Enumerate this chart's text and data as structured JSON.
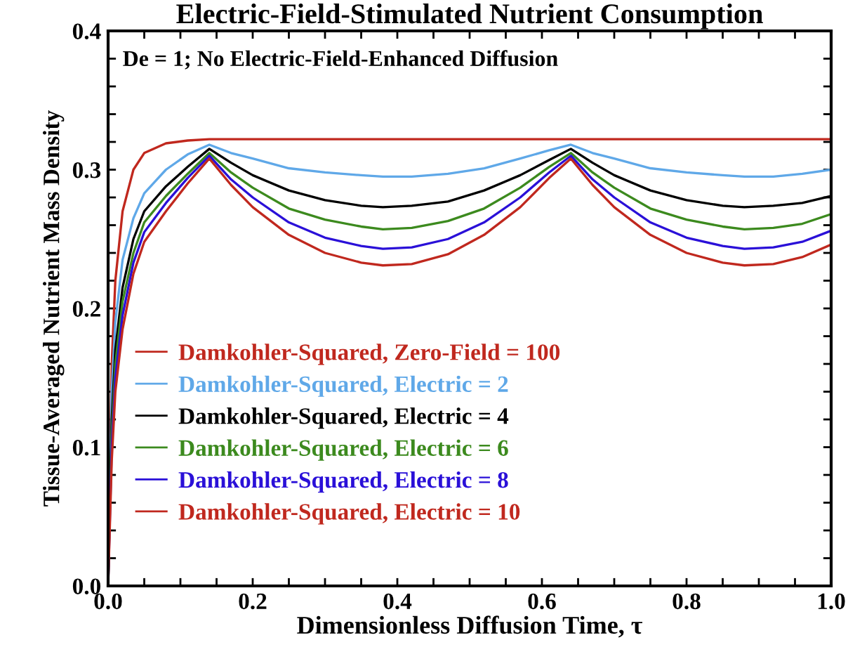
{
  "chart_data": {
    "type": "line",
    "title": "Electric-Field-Stimulated Nutrient Consumption",
    "xlabel": "Dimensionless Diffusion Time, τ",
    "ylabel": "Tissue-Averaged Nutrient Mass Density",
    "annotations": [
      "De = 1; No Electric-Field-Enhanced Diffusion"
    ],
    "xlim": [
      0,
      1
    ],
    "ylim": [
      0,
      0.4
    ],
    "xticks": [
      {
        "value": 0,
        "label": "0.0"
      },
      {
        "value": 0.05,
        "label": null
      },
      {
        "value": 0.1,
        "label": null
      },
      {
        "value": 0.15,
        "label": null
      },
      0.2,
      {
        "value": 0.25,
        "label": null
      },
      {
        "value": 0.3,
        "label": null
      },
      {
        "value": 0.35,
        "label": null
      },
      0.4,
      {
        "value": 0.45,
        "label": null
      },
      {
        "value": 0.5,
        "label": null
      },
      {
        "value": 0.55,
        "label": null
      },
      0.6,
      {
        "value": 0.65,
        "label": null
      },
      {
        "value": 0.7,
        "label": null
      },
      {
        "value": 0.75,
        "label": null
      },
      0.8,
      {
        "value": 0.85,
        "label": null
      },
      {
        "value": 0.9,
        "label": null
      },
      {
        "value": 0.95,
        "label": null
      },
      {
        "value": 1,
        "label": "1.0"
      }
    ],
    "yticks": [
      {
        "value": 0,
        "label": "0.0"
      },
      {
        "value": 0.02,
        "label": null
      },
      {
        "value": 0.04,
        "label": null
      },
      {
        "value": 0.06,
        "label": null
      },
      {
        "value": 0.08,
        "label": null
      },
      0.1,
      {
        "value": 0.12,
        "label": null
      },
      {
        "value": 0.14,
        "label": null
      },
      {
        "value": 0.16,
        "label": null
      },
      {
        "value": 0.18,
        "label": null
      },
      0.2,
      {
        "value": 0.22,
        "label": null
      },
      {
        "value": 0.24,
        "label": null
      },
      {
        "value": 0.26,
        "label": null
      },
      {
        "value": 0.28,
        "label": null
      },
      0.3,
      {
        "value": 0.32,
        "label": null
      },
      {
        "value": 0.34,
        "label": null
      },
      {
        "value": 0.36,
        "label": null
      },
      {
        "value": 0.38,
        "label": null
      },
      0.4
    ],
    "grid": false,
    "legend": "bottom left",
    "marker": "none",
    "line_style": "solid",
    "x": [
      0,
      0.005,
      0.01,
      0.02,
      0.035,
      0.05,
      0.08,
      0.11,
      0.14,
      0.17,
      0.2,
      0.25,
      0.3,
      0.35,
      0.38,
      0.42,
      0.47,
      0.52,
      0.57,
      0.61,
      0.64,
      0.67,
      0.7,
      0.75,
      0.8,
      0.85,
      0.88,
      0.92,
      0.96,
      1.0
    ],
    "series": [
      {
        "name": "Damkohler-Squared, Zero-Field = 100",
        "color": "#c0281e",
        "x": [
          0,
          0.005,
          0.01,
          0.02,
          0.035,
          0.05,
          0.08,
          0.11,
          0.14,
          1.0
        ],
        "values": [
          0,
          0.16,
          0.22,
          0.27,
          0.3,
          0.312,
          0.319,
          0.321,
          0.322,
          0.322
        ]
      },
      {
        "name": "Damkohler-Squared, Electric = 2",
        "color": "#5fa8e8",
        "values": [
          0,
          0.14,
          0.19,
          0.235,
          0.265,
          0.283,
          0.3,
          0.311,
          0.318,
          0.312,
          0.308,
          0.301,
          0.298,
          0.296,
          0.295,
          0.295,
          0.297,
          0.301,
          0.308,
          0.314,
          0.318,
          0.312,
          0.308,
          0.301,
          0.298,
          0.296,
          0.295,
          0.295,
          0.297,
          0.3
        ]
      },
      {
        "name": "Damkohler-Squared, Electric = 4",
        "color": "#000000",
        "values": [
          0,
          0.12,
          0.17,
          0.215,
          0.25,
          0.27,
          0.288,
          0.302,
          0.315,
          0.305,
          0.296,
          0.285,
          0.278,
          0.274,
          0.273,
          0.274,
          0.277,
          0.285,
          0.296,
          0.307,
          0.315,
          0.305,
          0.296,
          0.285,
          0.278,
          0.274,
          0.273,
          0.274,
          0.276,
          0.281
        ]
      },
      {
        "name": "Damkohler-Squared, Electric = 6",
        "color": "#3c8a1e",
        "values": [
          0,
          0.11,
          0.16,
          0.205,
          0.24,
          0.262,
          0.281,
          0.297,
          0.312,
          0.298,
          0.287,
          0.272,
          0.264,
          0.259,
          0.257,
          0.258,
          0.263,
          0.272,
          0.287,
          0.302,
          0.312,
          0.298,
          0.287,
          0.272,
          0.264,
          0.259,
          0.257,
          0.258,
          0.261,
          0.268
        ]
      },
      {
        "name": "Damkohler-Squared, Electric = 8",
        "color": "#2a10d8",
        "values": [
          0,
          0.1,
          0.15,
          0.195,
          0.233,
          0.255,
          0.276,
          0.294,
          0.31,
          0.293,
          0.28,
          0.262,
          0.251,
          0.245,
          0.243,
          0.244,
          0.25,
          0.262,
          0.28,
          0.298,
          0.31,
          0.293,
          0.28,
          0.262,
          0.251,
          0.245,
          0.243,
          0.244,
          0.248,
          0.256
        ]
      },
      {
        "name": "Damkohler-Squared, Electric = 10",
        "color": "#c0281e",
        "values": [
          0,
          0.09,
          0.14,
          0.185,
          0.225,
          0.248,
          0.27,
          0.29,
          0.308,
          0.289,
          0.273,
          0.253,
          0.24,
          0.233,
          0.231,
          0.232,
          0.239,
          0.253,
          0.273,
          0.294,
          0.308,
          0.289,
          0.273,
          0.253,
          0.24,
          0.233,
          0.231,
          0.232,
          0.237,
          0.246
        ]
      }
    ]
  }
}
